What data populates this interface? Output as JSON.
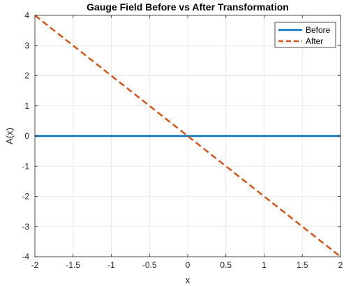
{
  "chart_data": {
    "type": "line",
    "title": "Gauge Field Before vs After Transformation",
    "xlabel": "x",
    "ylabel": "A(x)",
    "xlim": [
      -2,
      2
    ],
    "ylim": [
      -4,
      4
    ],
    "xticks": [
      -2,
      -1.5,
      -1,
      -0.5,
      0,
      0.5,
      1,
      1.5,
      2
    ],
    "yticks": [
      -4,
      -3,
      -2,
      -1,
      0,
      1,
      2,
      3,
      4
    ],
    "xtick_labels": [
      "-2",
      "-1.5",
      "-1",
      "-0.5",
      "0",
      "0.5",
      "1",
      "1.5",
      "2"
    ],
    "ytick_labels": [
      "-4",
      "-3",
      "-2",
      "-1",
      "0",
      "1",
      "2",
      "3",
      "4"
    ],
    "grid": true,
    "legend_position": "top-right",
    "series": [
      {
        "name": "Before",
        "x": [
          -2,
          2
        ],
        "y": [
          0,
          0
        ],
        "color": "#0072BD",
        "line_style": "solid"
      },
      {
        "name": "After",
        "x": [
          -2,
          2
        ],
        "y": [
          4,
          -4
        ],
        "color": "#D95319",
        "line_style": "dashed"
      }
    ]
  }
}
